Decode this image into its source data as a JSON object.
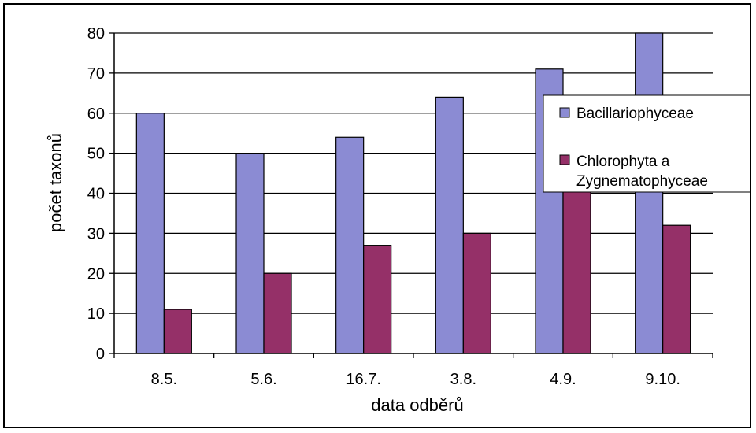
{
  "chart_data": {
    "type": "bar",
    "title": "",
    "xlabel": "data odběrů",
    "ylabel": "počet taxonů",
    "categories": [
      "8.5.",
      "5.6.",
      "16.7.",
      "3.8.",
      "4.9.",
      "9.10."
    ],
    "series": [
      {
        "name": "Bacillariophyceae",
        "color": "#8b8bd3",
        "values": [
          60,
          50,
          54,
          64,
          71,
          80
        ]
      },
      {
        "name": "Chlorophyta a Zygnematophyceae",
        "name_lines": [
          "Chlorophyta a",
          "Zygnematophyceae"
        ],
        "color": "#953068",
        "values": [
          11,
          20,
          27,
          30,
          41,
          32
        ]
      }
    ],
    "ylim": [
      0,
      80
    ],
    "yticks": [
      0,
      10,
      20,
      30,
      40,
      50,
      60,
      70,
      80
    ],
    "grid": true,
    "legend_position": "right"
  }
}
